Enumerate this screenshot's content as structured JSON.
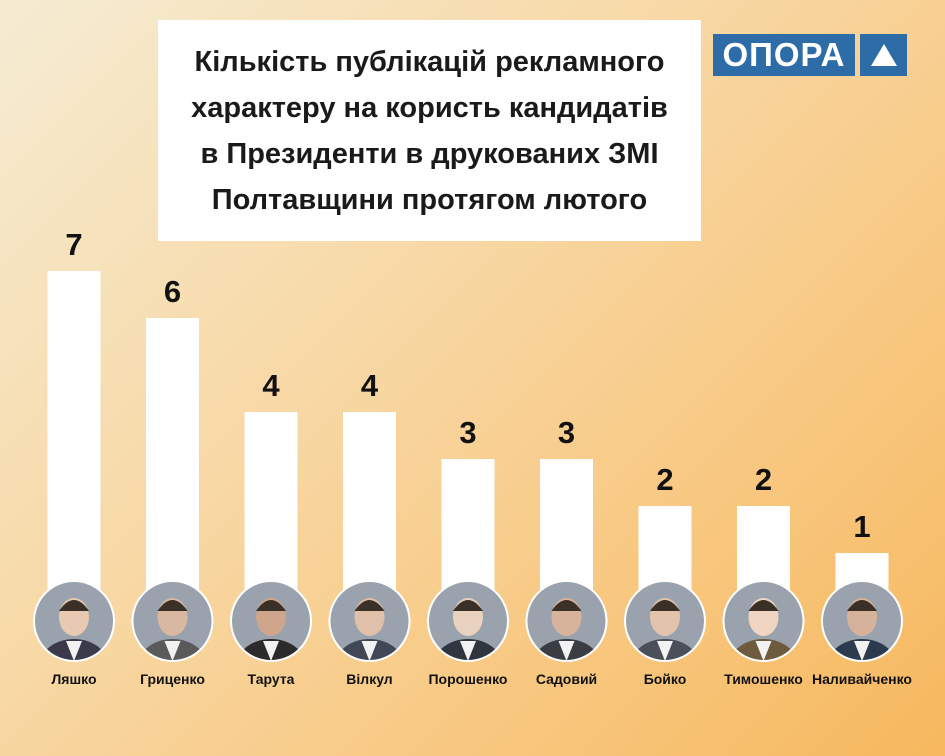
{
  "logo": {
    "text": "ОПОРА",
    "icon": "triangle-icon",
    "color": "#2e6ca8"
  },
  "chart_data": {
    "type": "bar",
    "title": "Кількість публікацій рекламного\nхарактеру на користь кандидатів\nв Президенти в друкованих ЗМІ\nПолтавщини протягом лютого",
    "categories": [
      "Ляшко",
      "Гриценко",
      "Тарута",
      "Вілкул",
      "Порошенко",
      "Садовий",
      "Бойко",
      "Тимошенко",
      "Наливайченко"
    ],
    "values": [
      7,
      6,
      4,
      4,
      3,
      3,
      2,
      2,
      1
    ],
    "data_labels": true,
    "ylim": [
      0,
      7
    ],
    "grid": false,
    "legend": "none",
    "bar_color": "#ffffff"
  }
}
